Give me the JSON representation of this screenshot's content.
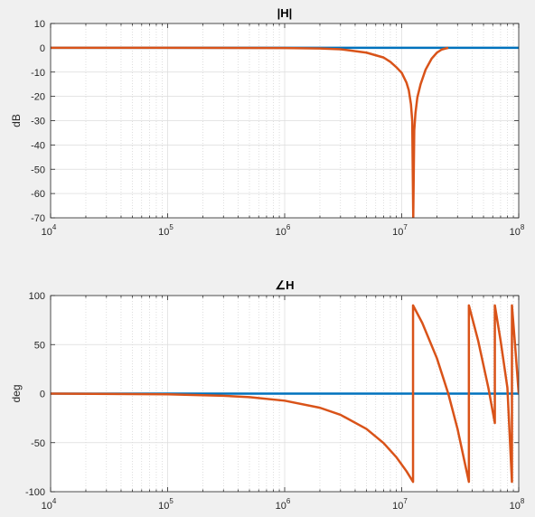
{
  "chart_data": [
    {
      "type": "line",
      "title": "|H|",
      "xlabel": "",
      "ylabel": "dB",
      "xscale": "log",
      "xlim": [
        10000,
        100000000
      ],
      "ylim": [
        -70,
        10
      ],
      "xticks": [
        10000,
        100000,
        1000000,
        10000000,
        100000000
      ],
      "xtick_labels": [
        [
          "10",
          "4"
        ],
        [
          "10",
          "5"
        ],
        [
          "10",
          "6"
        ],
        [
          "10",
          "7"
        ],
        [
          "10",
          "8"
        ]
      ],
      "yticks": [
        10,
        0,
        -10,
        -20,
        -30,
        -40,
        -50,
        -60,
        -70
      ],
      "ytick_labels": [
        "10",
        "0",
        "-10",
        "-20",
        "-30",
        "-40",
        "-50",
        "-60",
        "-70"
      ],
      "grid": true,
      "series": [
        {
          "color": "#0072bd",
          "x": [
            10000,
            100000000
          ],
          "y": [
            0,
            0
          ]
        },
        {
          "color": "#d95319",
          "x": [
            10000,
            100000,
            1000000,
            2000000,
            3000000,
            5000000,
            7000000,
            8000000,
            9000000,
            10000000,
            11000000,
            11500000,
            12000000,
            12300000,
            12550000,
            12800000,
            13100000,
            13600000,
            14500000,
            16000000,
            18000000,
            20000000,
            22000000,
            25000000
          ],
          "y": [
            0,
            0,
            -0.1,
            -0.3,
            -0.6,
            -2.0,
            -4.0,
            -5.8,
            -8.0,
            -10.3,
            -14.4,
            -17.5,
            -23.3,
            -30,
            -70,
            -34,
            -27,
            -20.5,
            -15,
            -9,
            -4.5,
            -2.0,
            -0.7,
            0
          ]
        }
      ]
    },
    {
      "type": "line",
      "title": "∠H",
      "xlabel": "",
      "ylabel": "deg",
      "xscale": "log",
      "xlim": [
        10000,
        100000000
      ],
      "ylim": [
        -100,
        100
      ],
      "xticks": [
        10000,
        100000,
        1000000,
        10000000,
        100000000
      ],
      "xtick_labels": [
        [
          "10",
          "4"
        ],
        [
          "10",
          "5"
        ],
        [
          "10",
          "6"
        ],
        [
          "10",
          "7"
        ],
        [
          "10",
          "8"
        ]
      ],
      "yticks": [
        100,
        50,
        0,
        -50,
        -100
      ],
      "ytick_labels": [
        "100",
        "50",
        "0",
        "-50",
        "-100"
      ],
      "grid": true,
      "series": [
        {
          "color": "#0072bd",
          "x": [
            10000,
            100000000
          ],
          "y": [
            0,
            0
          ]
        },
        {
          "color": "#d95319",
          "x": [
            10000,
            100000,
            300000,
            500000,
            1000000,
            2000000,
            3000000,
            5000000,
            7000000,
            9000000,
            11000000,
            12500000,
            12500000,
            15000000,
            20000000,
            25000000,
            30000000,
            37500000,
            37500000,
            45000000,
            55000000,
            62500000,
            62500000,
            70000000,
            80000000,
            87500000,
            87500000,
            93000000,
            100000000
          ],
          "y": [
            0,
            -0.7,
            -2.2,
            -3.6,
            -7.2,
            -14.4,
            -21.6,
            -36,
            -50.4,
            -64.8,
            -79.2,
            -90,
            90,
            72,
            36,
            0,
            -36,
            -90,
            90,
            54,
            6,
            -30,
            90,
            54,
            6,
            -90,
            90,
            50,
            0
          ]
        }
      ]
    }
  ]
}
